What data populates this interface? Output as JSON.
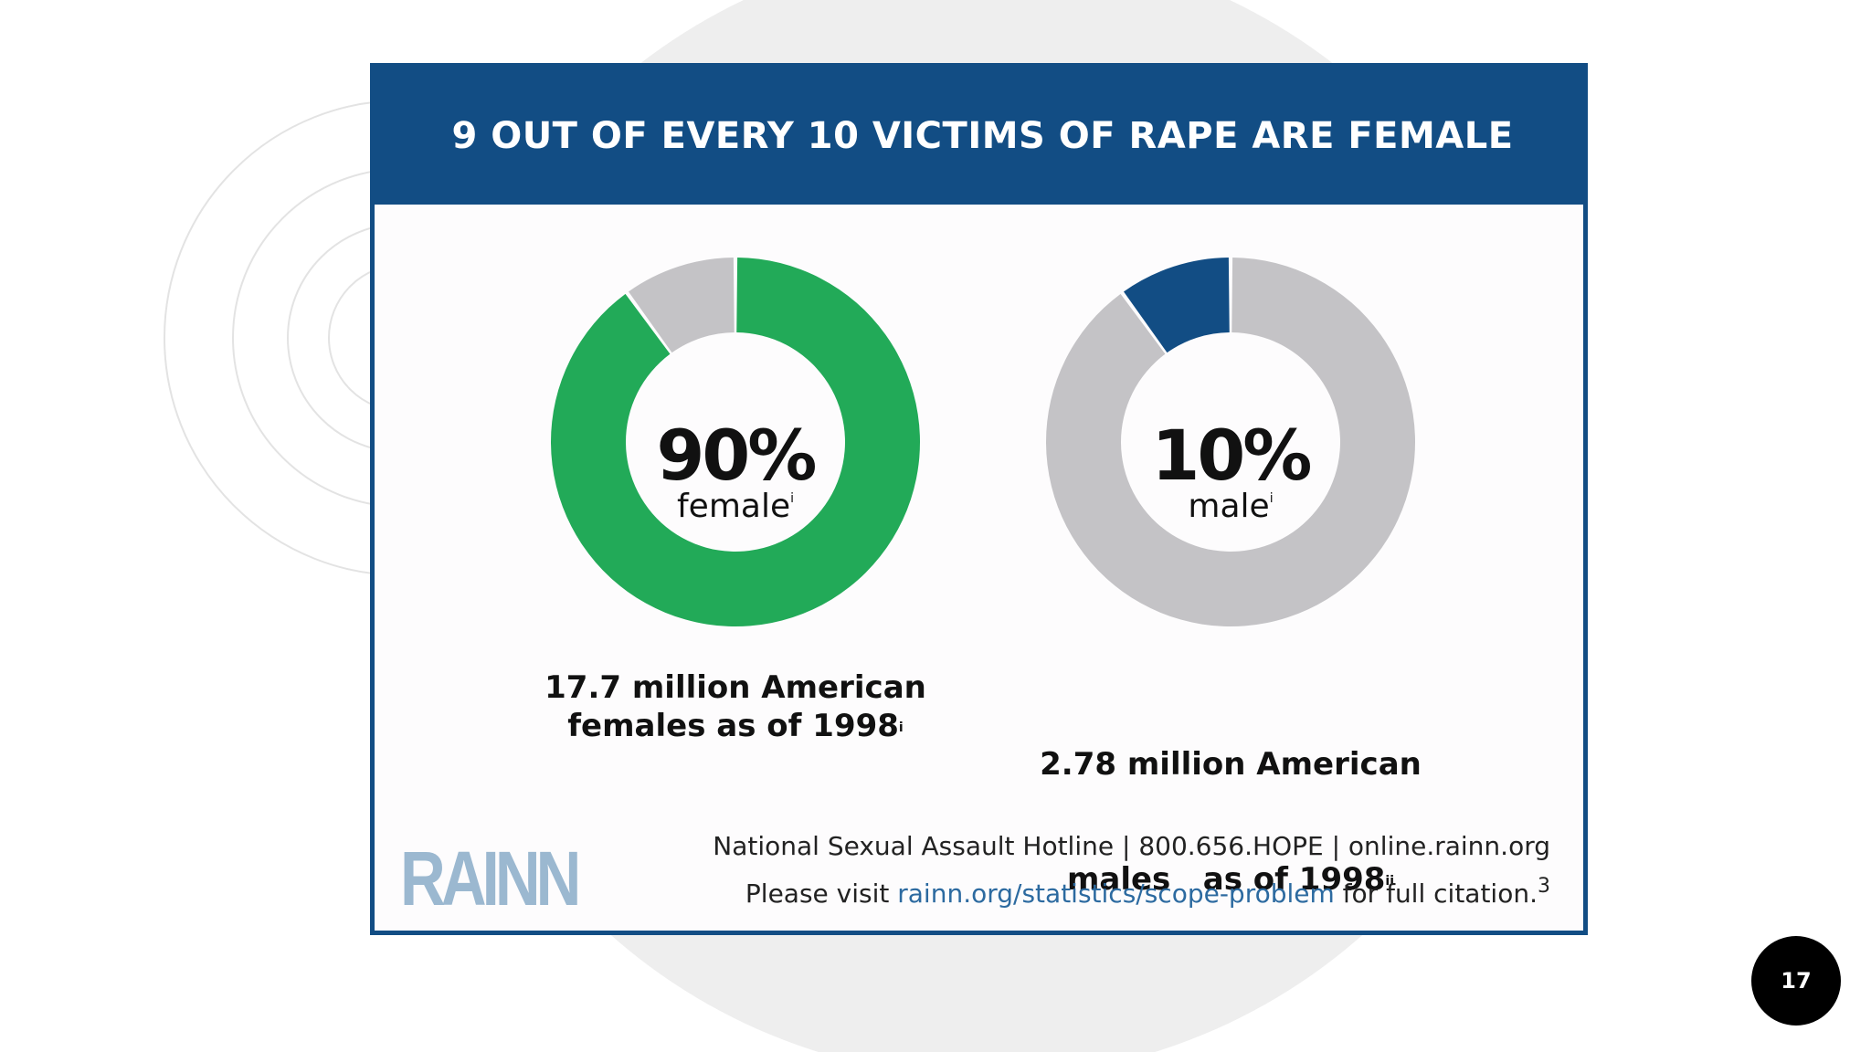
{
  "chart_data": [
    {
      "type": "pie",
      "title": "9 OUT OF EVERY 10 VICTIMS OF RAPE ARE FEMALE",
      "categories": [
        "female",
        "male"
      ],
      "values": [
        90,
        10
      ],
      "highlight": "female",
      "center_value": "90%",
      "center_label": "female",
      "center_label_superscript": "i",
      "caption_line1": "17.7 million American",
      "caption_line2": "females as of 1998",
      "caption_superscript": "i"
    },
    {
      "type": "pie",
      "categories": [
        "female",
        "male"
      ],
      "values": [
        90,
        10
      ],
      "highlight": "male",
      "center_value": "10%",
      "center_label": "male",
      "center_label_superscript": "i",
      "caption_line1": "2.78 million American",
      "caption_line2": "males   as of 1998",
      "caption_superscript": "ii"
    }
  ],
  "colors": {
    "header": "#124d84",
    "female": "#22aa58",
    "male": "#124d84",
    "other": "#c4c3c6"
  },
  "card": {
    "title": "9 OUT OF EVERY 10 VICTIMS OF RAPE ARE FEMALE",
    "logo": "RAINN",
    "footer_line1": "National Sexual Assault Hotline | 800.656.HOPE | online.rainn.org",
    "footer_line2_prefix": "Please visit ",
    "footer_link": "rainn.org/statistics/scope-problem",
    "footer_line2_suffix": " for full citation.",
    "footer_superscript": "3"
  },
  "slide": {
    "page_number": "17"
  }
}
